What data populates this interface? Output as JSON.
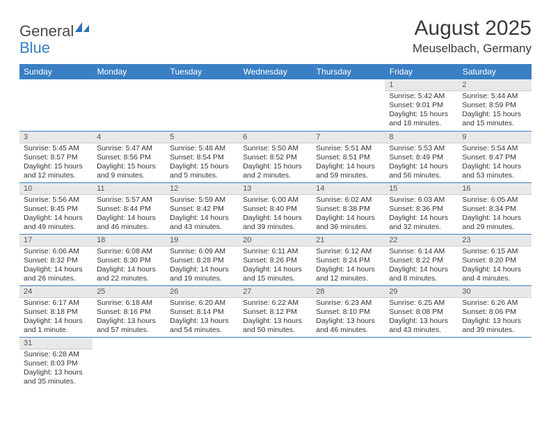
{
  "logo": {
    "general": "General",
    "blue": "Blue"
  },
  "title": "August 2025",
  "location": "Meuselbach, Germany",
  "colors": {
    "header_bg": "#3a7fc4",
    "header_text": "#ffffff",
    "daynum_bg": "#e8e8e8",
    "row_divider": "#3a7fc4",
    "text": "#333333",
    "logo_gray": "#4a4a4a",
    "logo_blue": "#3a7fc4"
  },
  "weekdays": [
    "Sunday",
    "Monday",
    "Tuesday",
    "Wednesday",
    "Thursday",
    "Friday",
    "Saturday"
  ],
  "grid": [
    [
      null,
      null,
      null,
      null,
      null,
      {
        "day": "1",
        "sunrise": "Sunrise: 5:42 AM",
        "sunset": "Sunset: 9:01 PM",
        "daylight": "Daylight: 15 hours and 18 minutes."
      },
      {
        "day": "2",
        "sunrise": "Sunrise: 5:44 AM",
        "sunset": "Sunset: 8:59 PM",
        "daylight": "Daylight: 15 hours and 15 minutes."
      }
    ],
    [
      {
        "day": "3",
        "sunrise": "Sunrise: 5:45 AM",
        "sunset": "Sunset: 8:57 PM",
        "daylight": "Daylight: 15 hours and 12 minutes."
      },
      {
        "day": "4",
        "sunrise": "Sunrise: 5:47 AM",
        "sunset": "Sunset: 8:56 PM",
        "daylight": "Daylight: 15 hours and 9 minutes."
      },
      {
        "day": "5",
        "sunrise": "Sunrise: 5:48 AM",
        "sunset": "Sunset: 8:54 PM",
        "daylight": "Daylight: 15 hours and 5 minutes."
      },
      {
        "day": "6",
        "sunrise": "Sunrise: 5:50 AM",
        "sunset": "Sunset: 8:52 PM",
        "daylight": "Daylight: 15 hours and 2 minutes."
      },
      {
        "day": "7",
        "sunrise": "Sunrise: 5:51 AM",
        "sunset": "Sunset: 8:51 PM",
        "daylight": "Daylight: 14 hours and 59 minutes."
      },
      {
        "day": "8",
        "sunrise": "Sunrise: 5:53 AM",
        "sunset": "Sunset: 8:49 PM",
        "daylight": "Daylight: 14 hours and 56 minutes."
      },
      {
        "day": "9",
        "sunrise": "Sunrise: 5:54 AM",
        "sunset": "Sunset: 8:47 PM",
        "daylight": "Daylight: 14 hours and 53 minutes."
      }
    ],
    [
      {
        "day": "10",
        "sunrise": "Sunrise: 5:56 AM",
        "sunset": "Sunset: 8:45 PM",
        "daylight": "Daylight: 14 hours and 49 minutes."
      },
      {
        "day": "11",
        "sunrise": "Sunrise: 5:57 AM",
        "sunset": "Sunset: 8:44 PM",
        "daylight": "Daylight: 14 hours and 46 minutes."
      },
      {
        "day": "12",
        "sunrise": "Sunrise: 5:59 AM",
        "sunset": "Sunset: 8:42 PM",
        "daylight": "Daylight: 14 hours and 43 minutes."
      },
      {
        "day": "13",
        "sunrise": "Sunrise: 6:00 AM",
        "sunset": "Sunset: 8:40 PM",
        "daylight": "Daylight: 14 hours and 39 minutes."
      },
      {
        "day": "14",
        "sunrise": "Sunrise: 6:02 AM",
        "sunset": "Sunset: 8:38 PM",
        "daylight": "Daylight: 14 hours and 36 minutes."
      },
      {
        "day": "15",
        "sunrise": "Sunrise: 6:03 AM",
        "sunset": "Sunset: 8:36 PM",
        "daylight": "Daylight: 14 hours and 32 minutes."
      },
      {
        "day": "16",
        "sunrise": "Sunrise: 6:05 AM",
        "sunset": "Sunset: 8:34 PM",
        "daylight": "Daylight: 14 hours and 29 minutes."
      }
    ],
    [
      {
        "day": "17",
        "sunrise": "Sunrise: 6:06 AM",
        "sunset": "Sunset: 8:32 PM",
        "daylight": "Daylight: 14 hours and 26 minutes."
      },
      {
        "day": "18",
        "sunrise": "Sunrise: 6:08 AM",
        "sunset": "Sunset: 8:30 PM",
        "daylight": "Daylight: 14 hours and 22 minutes."
      },
      {
        "day": "19",
        "sunrise": "Sunrise: 6:09 AM",
        "sunset": "Sunset: 8:28 PM",
        "daylight": "Daylight: 14 hours and 19 minutes."
      },
      {
        "day": "20",
        "sunrise": "Sunrise: 6:11 AM",
        "sunset": "Sunset: 8:26 PM",
        "daylight": "Daylight: 14 hours and 15 minutes."
      },
      {
        "day": "21",
        "sunrise": "Sunrise: 6:12 AM",
        "sunset": "Sunset: 8:24 PM",
        "daylight": "Daylight: 14 hours and 12 minutes."
      },
      {
        "day": "22",
        "sunrise": "Sunrise: 6:14 AM",
        "sunset": "Sunset: 8:22 PM",
        "daylight": "Daylight: 14 hours and 8 minutes."
      },
      {
        "day": "23",
        "sunrise": "Sunrise: 6:15 AM",
        "sunset": "Sunset: 8:20 PM",
        "daylight": "Daylight: 14 hours and 4 minutes."
      }
    ],
    [
      {
        "day": "24",
        "sunrise": "Sunrise: 6:17 AM",
        "sunset": "Sunset: 8:18 PM",
        "daylight": "Daylight: 14 hours and 1 minute."
      },
      {
        "day": "25",
        "sunrise": "Sunrise: 6:18 AM",
        "sunset": "Sunset: 8:16 PM",
        "daylight": "Daylight: 13 hours and 57 minutes."
      },
      {
        "day": "26",
        "sunrise": "Sunrise: 6:20 AM",
        "sunset": "Sunset: 8:14 PM",
        "daylight": "Daylight: 13 hours and 54 minutes."
      },
      {
        "day": "27",
        "sunrise": "Sunrise: 6:22 AM",
        "sunset": "Sunset: 8:12 PM",
        "daylight": "Daylight: 13 hours and 50 minutes."
      },
      {
        "day": "28",
        "sunrise": "Sunrise: 6:23 AM",
        "sunset": "Sunset: 8:10 PM",
        "daylight": "Daylight: 13 hours and 46 minutes."
      },
      {
        "day": "29",
        "sunrise": "Sunrise: 6:25 AM",
        "sunset": "Sunset: 8:08 PM",
        "daylight": "Daylight: 13 hours and 43 minutes."
      },
      {
        "day": "30",
        "sunrise": "Sunrise: 6:26 AM",
        "sunset": "Sunset: 8:06 PM",
        "daylight": "Daylight: 13 hours and 39 minutes."
      }
    ],
    [
      {
        "day": "31",
        "sunrise": "Sunrise: 6:28 AM",
        "sunset": "Sunset: 8:03 PM",
        "daylight": "Daylight: 13 hours and 35 minutes."
      },
      null,
      null,
      null,
      null,
      null,
      null
    ]
  ]
}
